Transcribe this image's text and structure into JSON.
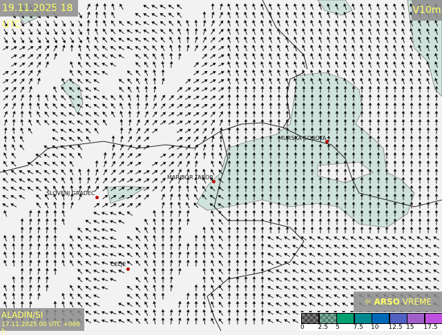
{
  "header": {
    "valid_time": "19.11.2025 18 UTC",
    "variable": "V10m"
  },
  "model": {
    "name": "ALADIN/SI",
    "run": "17.11.2025 00 UTC +066 h"
  },
  "logo": {
    "brand": "ARSO",
    "product": "VREME"
  },
  "cities": [
    {
      "name": "MURSKA SOBOTA"
    },
    {
      "name": "MARIBOR TABOR"
    },
    {
      "name": "SLOVENJ GRADEC"
    },
    {
      "name": "CELJE"
    }
  ],
  "legend": {
    "ticks": [
      "0",
      "2.5",
      "5",
      "7.5",
      "10",
      "12.5",
      "15",
      "17.5"
    ],
    "colors": [
      "checker-gray",
      "checker-green",
      "#00a070",
      "#008890",
      "#0068b8",
      "#5060c0",
      "#a060c8",
      "#c050e0"
    ]
  },
  "colors": {
    "shade": "#cfe3dc",
    "label_text": "#ffff66",
    "city_dot": "#c00000"
  }
}
